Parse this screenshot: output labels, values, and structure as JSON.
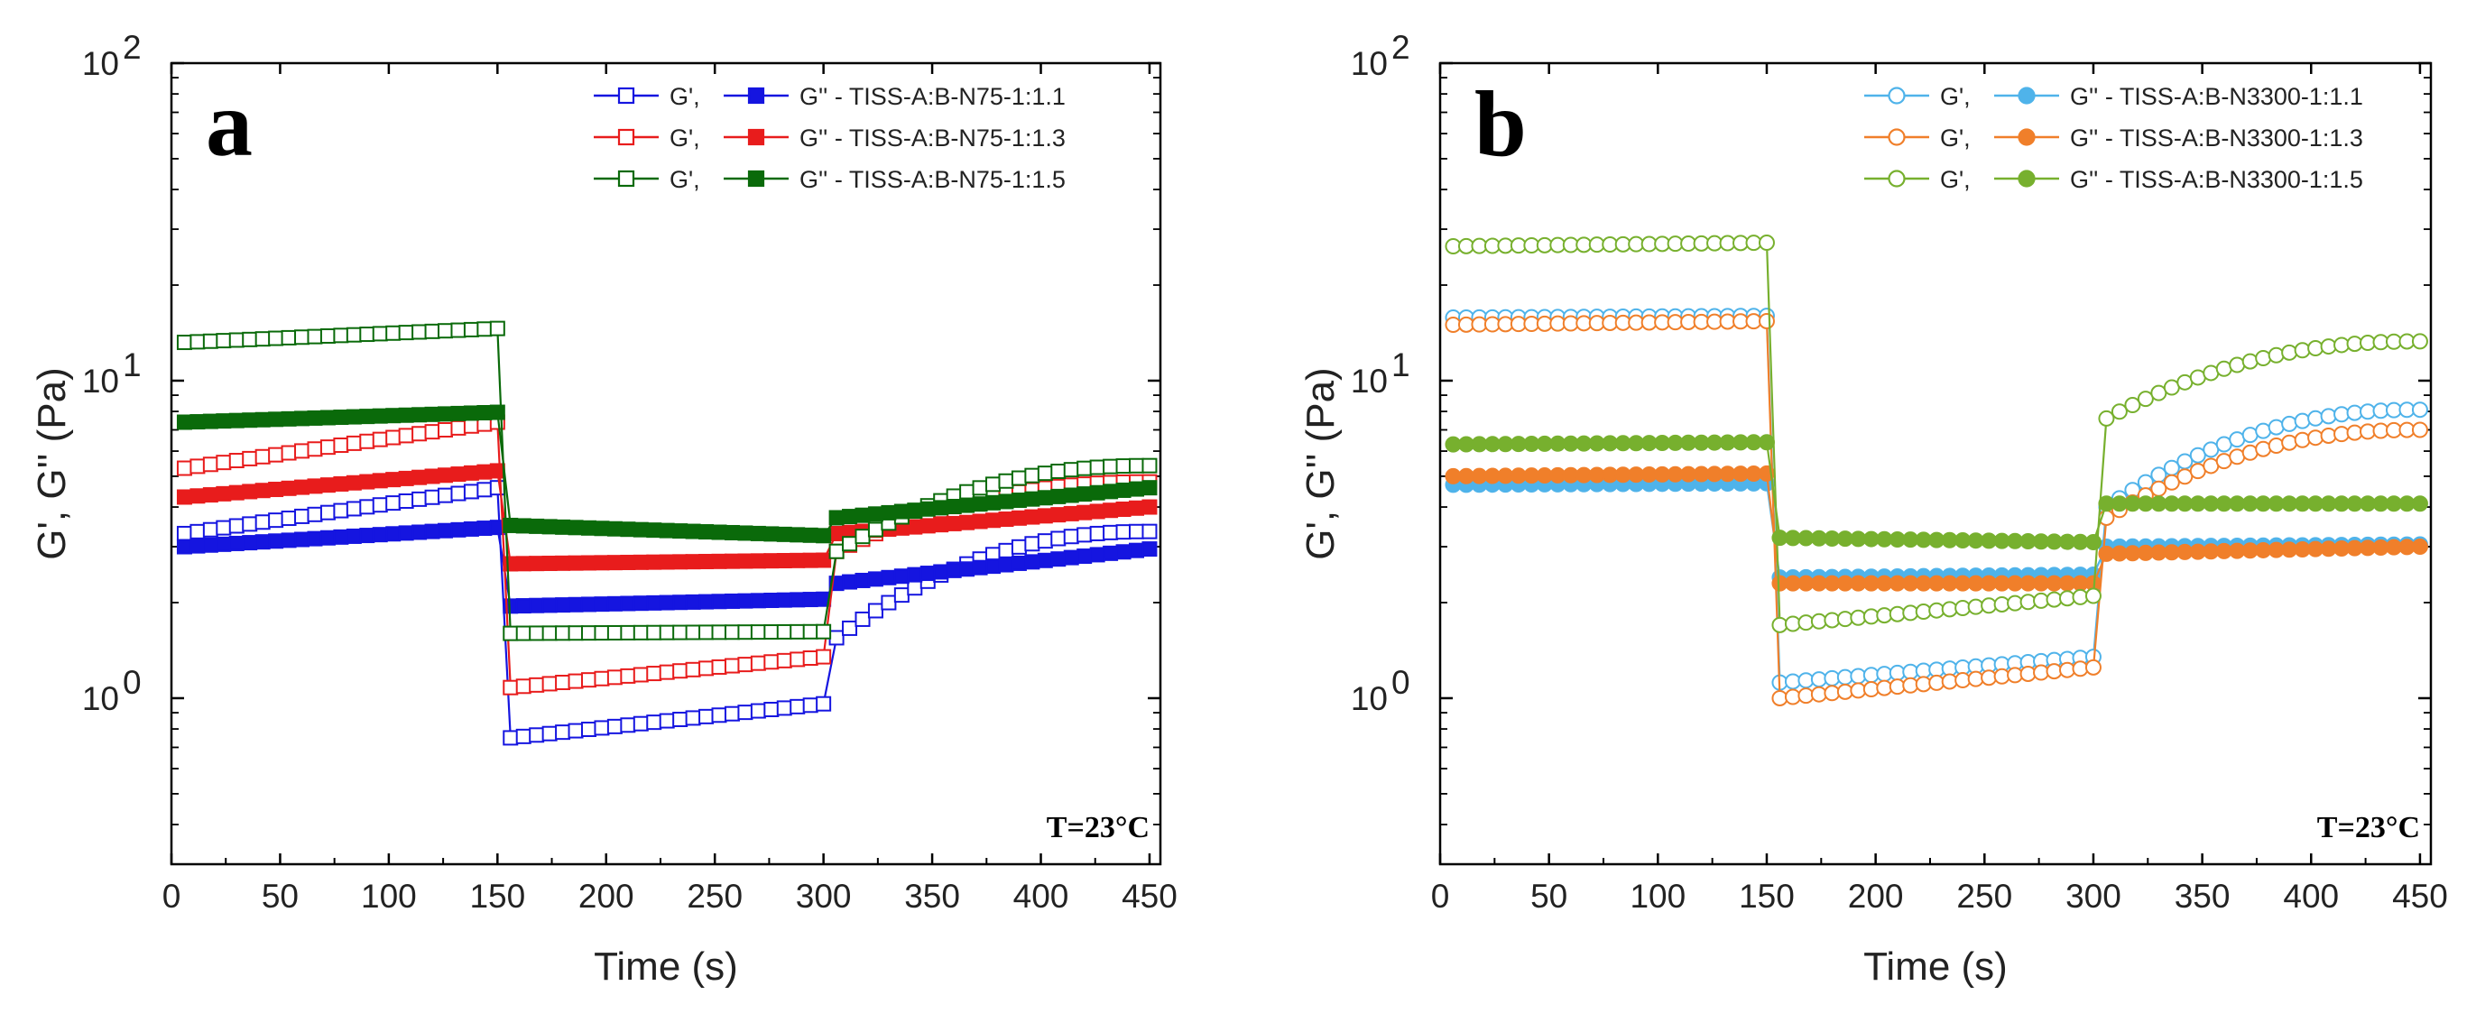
{
  "chart_data": [
    {
      "type": "scatter",
      "panel_label": "a",
      "xlabel": "Time (s)",
      "ylabel": "G', G'' (Pa)",
      "xlim": [
        0,
        455
      ],
      "ylim": [
        0.3,
        100
      ],
      "yscale": "log",
      "xticks": [
        0,
        50,
        100,
        150,
        200,
        250,
        300,
        350,
        400,
        450
      ],
      "yticks": [
        {
          "value": 1,
          "mant": "10",
          "exp": "0"
        },
        {
          "value": 10,
          "mant": "10",
          "exp": "1"
        },
        {
          "value": 100,
          "mant": "10",
          "exp": "2"
        }
      ],
      "marker": "square",
      "annotation": "T=23°C",
      "legend_position": "top-right",
      "legend": [
        {
          "gp_label": "G',",
          "gpp_label": "G'' - TISS-A:B-N75-1:1.1",
          "color": "#1515e0"
        },
        {
          "gp_label": "G',",
          "gpp_label": "G'' - TISS-A:B-N75-1:1.3",
          "color": "#e81c1c"
        },
        {
          "gp_label": "G',",
          "gpp_label": "G'' - TISS-A:B-N75-1:1.5",
          "color": "#0a6a0a"
        }
      ],
      "series": [
        {
          "name": "G' - TISS-A:B-N75-1:1.1",
          "color": "#1515e0",
          "filled": false,
          "segments": [
            [
              6,
              150,
              3.3,
              4.6
            ],
            [
              156,
              300,
              0.75,
              0.96
            ],
            [
              306,
              450,
              1.55,
              3.35
            ]
          ]
        },
        {
          "name": "G'' - TISS-A:B-N75-1:1.1",
          "color": "#1515e0",
          "filled": true,
          "segments": [
            [
              6,
              150,
              3.0,
              3.45
            ],
            [
              156,
              300,
              1.95,
              2.05
            ],
            [
              306,
              450,
              2.3,
              2.95
            ]
          ]
        },
        {
          "name": "G' - TISS-A:B-N75-1:1.3",
          "color": "#e81c1c",
          "filled": false,
          "segments": [
            [
              6,
              150,
              5.3,
              7.4
            ],
            [
              156,
              300,
              1.08,
              1.35
            ],
            [
              306,
              450,
              2.9,
              4.8
            ]
          ]
        },
        {
          "name": "G'' - TISS-A:B-N75-1:1.3",
          "color": "#e81c1c",
          "filled": true,
          "segments": [
            [
              6,
              150,
              4.3,
              5.2
            ],
            [
              156,
              300,
              2.65,
              2.72
            ],
            [
              306,
              450,
              3.3,
              4.0
            ]
          ]
        },
        {
          "name": "G' - TISS-A:B-N75-1:1.5",
          "color": "#0a6a0a",
          "filled": false,
          "segments": [
            [
              6,
              150,
              13.2,
              14.6
            ],
            [
              156,
              300,
              1.6,
              1.62
            ],
            [
              306,
              450,
              2.9,
              5.4
            ]
          ]
        },
        {
          "name": "G'' - TISS-A:B-N75-1:1.5",
          "color": "#0a6a0a",
          "filled": true,
          "segments": [
            [
              6,
              150,
              7.4,
              7.95
            ],
            [
              156,
              300,
              3.5,
              3.25
            ],
            [
              306,
              450,
              3.7,
              4.6
            ]
          ]
        }
      ]
    },
    {
      "type": "scatter",
      "panel_label": "b",
      "xlabel": "Time (s)",
      "ylabel": "G', G'' (Pa)",
      "xlim": [
        0,
        455
      ],
      "ylim": [
        0.3,
        100
      ],
      "yscale": "log",
      "xticks": [
        0,
        50,
        100,
        150,
        200,
        250,
        300,
        350,
        400,
        450
      ],
      "yticks": [
        {
          "value": 1,
          "mant": "10",
          "exp": "0"
        },
        {
          "value": 10,
          "mant": "10",
          "exp": "1"
        },
        {
          "value": 100,
          "mant": "10",
          "exp": "2"
        }
      ],
      "marker": "circle",
      "annotation": "T=23°C",
      "legend_position": "top-right",
      "legend": [
        {
          "gp_label": "G',",
          "gpp_label": "G'' - TISS-A:B-N3300-1:1.1",
          "color": "#4fb3ea"
        },
        {
          "gp_label": "G',",
          "gpp_label": "G'' - TISS-A:B-N3300-1:1.3",
          "color": "#f07f2a"
        },
        {
          "gp_label": "G',",
          "gpp_label": "G'' - TISS-A:B-N3300-1:1.5",
          "color": "#77b02e"
        }
      ],
      "series": [
        {
          "name": "G' - TISS-A:B-N3300-1:1.1",
          "color": "#4fb3ea",
          "filled": false,
          "segments": [
            [
              6,
              150,
              15.8,
              16.0
            ],
            [
              156,
              300,
              1.12,
              1.35
            ],
            [
              306,
              450,
              4.0,
              8.1
            ]
          ]
        },
        {
          "name": "G'' - TISS-A:B-N3300-1:1.1",
          "color": "#4fb3ea",
          "filled": true,
          "segments": [
            [
              6,
              150,
              4.7,
              4.75
            ],
            [
              156,
              300,
              2.4,
              2.45
            ],
            [
              306,
              450,
              3.0,
              3.05
            ]
          ]
        },
        {
          "name": "G' - TISS-A:B-N3300-1:1.3",
          "color": "#f07f2a",
          "filled": false,
          "segments": [
            [
              6,
              150,
              15.0,
              15.4
            ],
            [
              156,
              300,
              1.0,
              1.25
            ],
            [
              306,
              450,
              3.7,
              7.0
            ]
          ]
        },
        {
          "name": "G'' - TISS-A:B-N3300-1:1.3",
          "color": "#f07f2a",
          "filled": true,
          "segments": [
            [
              6,
              150,
              5.0,
              5.1
            ],
            [
              156,
              300,
              2.3,
              2.3
            ],
            [
              306,
              450,
              2.85,
              3.0
            ]
          ]
        },
        {
          "name": "G' - TISS-A:B-N3300-1:1.5",
          "color": "#77b02e",
          "filled": false,
          "segments": [
            [
              6,
              150,
              26.5,
              27.2
            ],
            [
              156,
              300,
              1.7,
              2.1
            ],
            [
              306,
              450,
              7.6,
              13.3
            ]
          ]
        },
        {
          "name": "G'' - TISS-A:B-N3300-1:1.5",
          "color": "#77b02e",
          "filled": true,
          "segments": [
            [
              6,
              150,
              6.3,
              6.4
            ],
            [
              156,
              300,
              3.2,
              3.1
            ],
            [
              306,
              450,
              4.1,
              4.1
            ]
          ]
        }
      ]
    }
  ]
}
